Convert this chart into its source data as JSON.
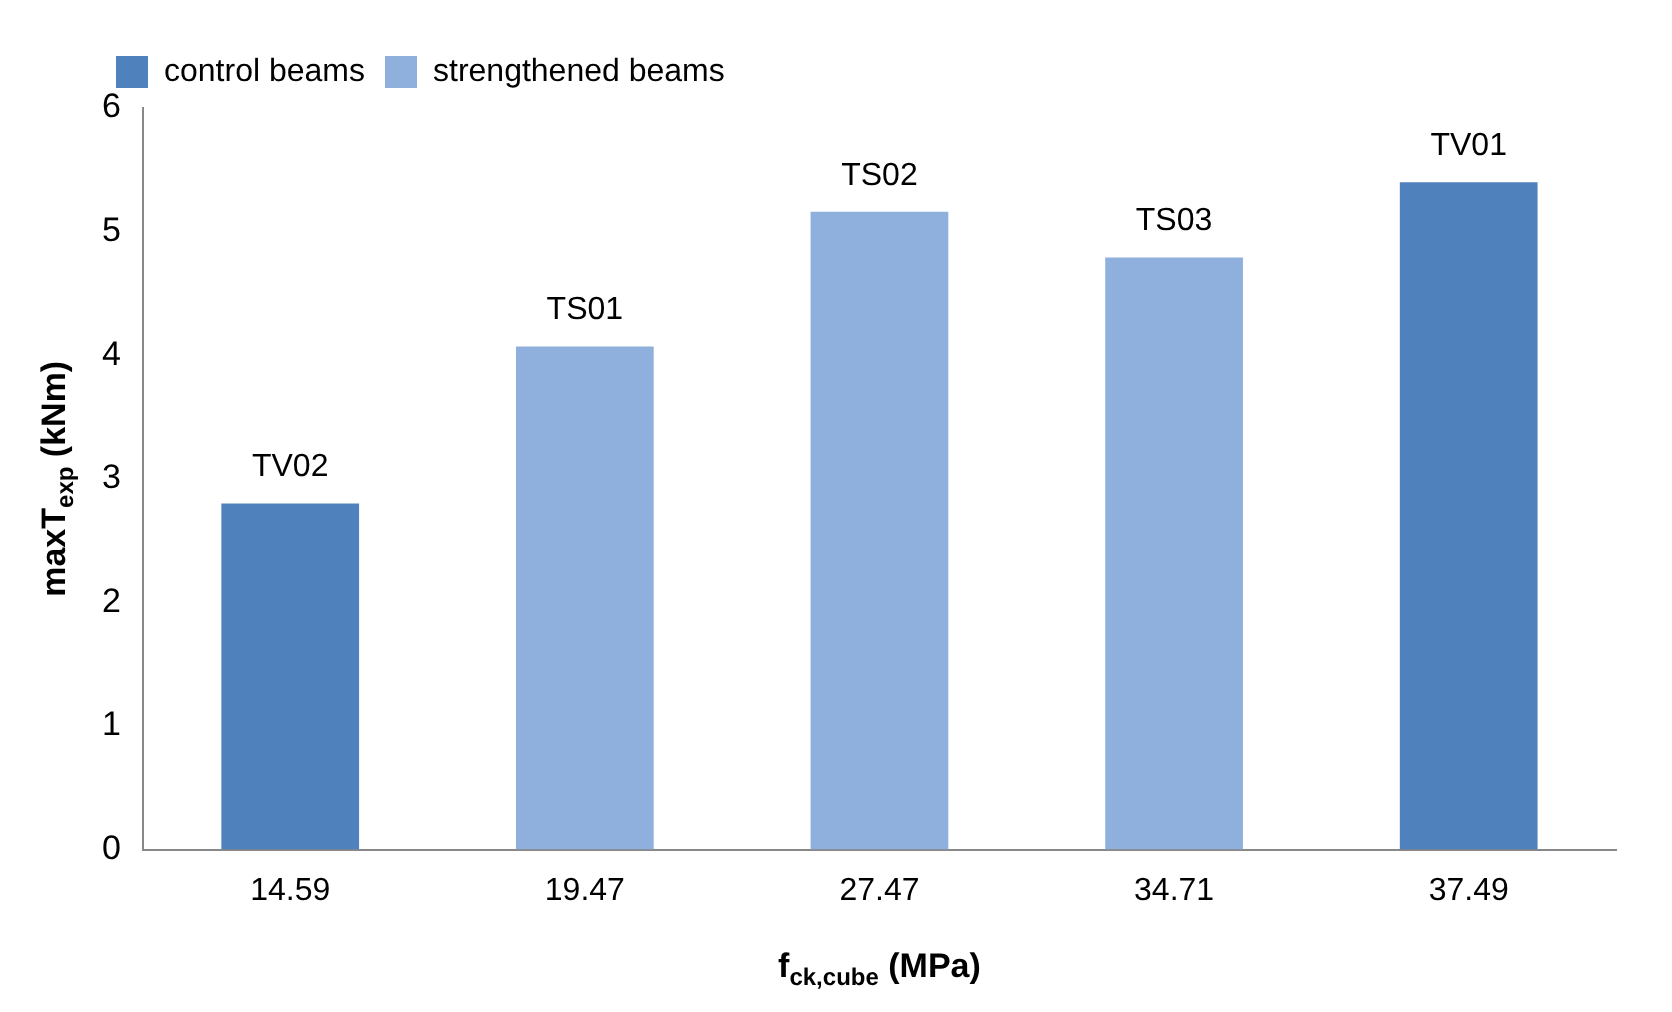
{
  "chart_data": {
    "type": "bar",
    "xlabel": "f$_{ck,cube}$ (MPa)",
    "ylabel": "maxT$_{exp}$ (kNm)",
    "categories": [
      "14.59",
      "19.47",
      "27.47",
      "34.71",
      "37.49"
    ],
    "series": [
      {
        "name": "control beams",
        "color": "#4f81bd",
        "values": [
          2.8,
          null,
          null,
          null,
          5.4
        ]
      },
      {
        "name": "strengthened beams",
        "color": "#8fb0dc",
        "values": [
          null,
          4.07,
          5.16,
          4.79,
          null
        ]
      }
    ],
    "ylim": [
      0,
      6
    ],
    "yticks": [
      0,
      1,
      2,
      3,
      4,
      5,
      6
    ],
    "grid": false,
    "legend": "top left",
    "annotations": [
      {
        "text": "TV02",
        "x": "14.59",
        "y": 2.8
      },
      {
        "text": "TS01",
        "x": "19.47",
        "y": 4.07
      },
      {
        "text": "TS02",
        "x": "27.47",
        "y": 5.16
      },
      {
        "text": "TS03",
        "x": "34.71",
        "y": 4.79
      },
      {
        "text": "TV01",
        "x": "37.49",
        "y": 5.4
      }
    ]
  }
}
